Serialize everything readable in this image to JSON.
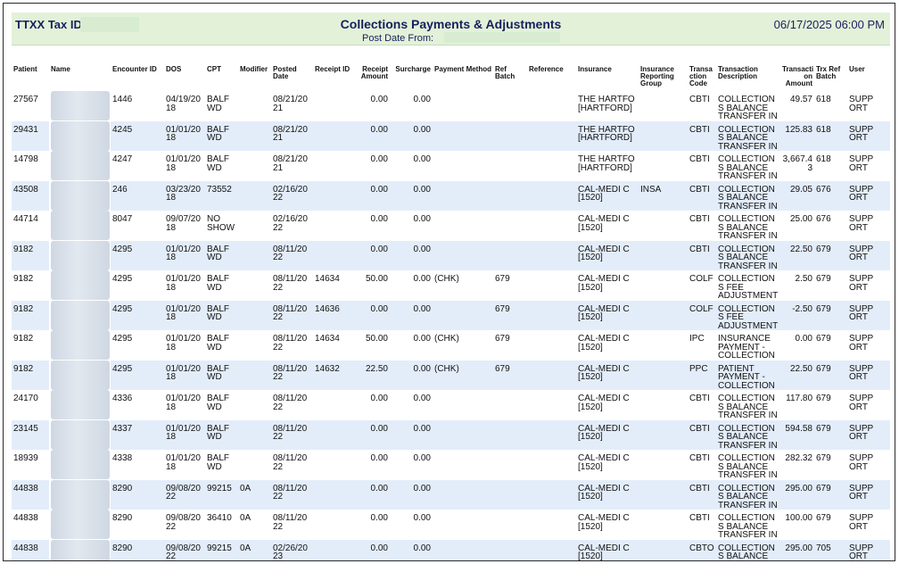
{
  "header": {
    "tax_id_label": "TTXX Tax ID:",
    "title": "Collections Payments & Adjustments",
    "date": "06/17/2025 06:00 PM",
    "post_date_label": "Post Date From:"
  },
  "columns": [
    "Patient",
    "Name",
    "Encounter ID",
    "DOS",
    "CPT",
    "Modifier",
    "Posted Date",
    "Receipt ID",
    "Receipt Amount",
    "Surcharge",
    "Payment Method",
    "Ref Batch",
    "Reference",
    "Insurance",
    "Insurance Reporting Group",
    "Transa ction Code",
    "Transaction Description",
    "Transacti on Amount",
    "Trx Ref Batch",
    "User"
  ],
  "rows": [
    {
      "patient": "27567",
      "encounter": "1446",
      "dos": "04/19/20 18",
      "cpt": "BALF WD",
      "modifier": "",
      "posted": "08/21/20 21",
      "receipt_id": "",
      "receipt_amount": "0.00",
      "surcharge": "0.00",
      "payment_method": "",
      "ref_batch": "",
      "reference": "",
      "insurance": "THE HARTFO [HARTFORD]",
      "ins_group": "",
      "trx_code": "CBTI",
      "trx_desc": "COLLECTION S BALANCE TRANSFER IN",
      "trx_amount": "49.57",
      "trx_batch": "618",
      "user": "SUPP ORT"
    },
    {
      "patient": "29431",
      "encounter": "4245",
      "dos": "01/01/20 18",
      "cpt": "BALF WD",
      "modifier": "",
      "posted": "08/21/20 21",
      "receipt_id": "",
      "receipt_amount": "0.00",
      "surcharge": "0.00",
      "payment_method": "",
      "ref_batch": "",
      "reference": "",
      "insurance": "THE HARTFO [HARTFORD]",
      "ins_group": "",
      "trx_code": "CBTI",
      "trx_desc": "COLLECTION S BALANCE TRANSFER IN",
      "trx_amount": "125.83",
      "trx_batch": "618",
      "user": "SUPP ORT"
    },
    {
      "patient": "14798",
      "encounter": "4247",
      "dos": "01/01/20 18",
      "cpt": "BALF WD",
      "modifier": "",
      "posted": "08/21/20 21",
      "receipt_id": "",
      "receipt_amount": "0.00",
      "surcharge": "0.00",
      "payment_method": "",
      "ref_batch": "",
      "reference": "",
      "insurance": "THE HARTFO [HARTFORD]",
      "ins_group": "",
      "trx_code": "CBTI",
      "trx_desc": "COLLECTION S BALANCE TRANSFER IN",
      "trx_amount": "3,667.4 3",
      "trx_batch": "618",
      "user": "SUPP ORT"
    },
    {
      "patient": "43508",
      "encounter": "246",
      "dos": "03/23/20 18",
      "cpt": "73552",
      "modifier": "",
      "posted": "02/16/20 22",
      "receipt_id": "",
      "receipt_amount": "0.00",
      "surcharge": "0.00",
      "payment_method": "",
      "ref_batch": "",
      "reference": "",
      "insurance": "CAL-MEDI C [1520]",
      "ins_group": "INSA",
      "trx_code": "CBTI",
      "trx_desc": "COLLECTION S BALANCE TRANSFER IN",
      "trx_amount": "29.05",
      "trx_batch": "676",
      "user": "SUPP ORT"
    },
    {
      "patient": "44714",
      "encounter": "8047",
      "dos": "09/07/20 18",
      "cpt": "NO SHOW",
      "modifier": "",
      "posted": "02/16/20 22",
      "receipt_id": "",
      "receipt_amount": "0.00",
      "surcharge": "0.00",
      "payment_method": "",
      "ref_batch": "",
      "reference": "",
      "insurance": "CAL-MEDI C [1520]",
      "ins_group": "",
      "trx_code": "CBTI",
      "trx_desc": "COLLECTION S BALANCE TRANSFER IN",
      "trx_amount": "25.00",
      "trx_batch": "676",
      "user": "SUPP ORT"
    },
    {
      "patient": "9182",
      "encounter": "4295",
      "dos": "01/01/20 18",
      "cpt": "BALF WD",
      "modifier": "",
      "posted": "08/11/20 22",
      "receipt_id": "",
      "receipt_amount": "0.00",
      "surcharge": "0.00",
      "payment_method": "",
      "ref_batch": "",
      "reference": "",
      "insurance": "CAL-MEDI C [1520]",
      "ins_group": "",
      "trx_code": "CBTI",
      "trx_desc": "COLLECTION S BALANCE TRANSFER IN",
      "trx_amount": "22.50",
      "trx_batch": "679",
      "user": "SUPP ORT"
    },
    {
      "patient": "9182",
      "encounter": "4295",
      "dos": "01/01/20 18",
      "cpt": "BALF WD",
      "modifier": "",
      "posted": "08/11/20 22",
      "receipt_id": "14634",
      "receipt_amount": "50.00",
      "surcharge": "0.00",
      "payment_method": "(CHK)",
      "ref_batch": "679",
      "reference": "",
      "insurance": "CAL-MEDI C [1520]",
      "ins_group": "",
      "trx_code": "COLF",
      "trx_desc": "COLLECTION S FEE ADJUSTMENT",
      "trx_amount": "2.50",
      "trx_batch": "679",
      "user": "SUPP ORT"
    },
    {
      "patient": "9182",
      "encounter": "4295",
      "dos": "01/01/20 18",
      "cpt": "BALF WD",
      "modifier": "",
      "posted": "08/11/20 22",
      "receipt_id": "14636",
      "receipt_amount": "0.00",
      "surcharge": "0.00",
      "payment_method": "",
      "ref_batch": "679",
      "reference": "",
      "insurance": "CAL-MEDI C [1520]",
      "ins_group": "",
      "trx_code": "COLF",
      "trx_desc": "COLLECTION S FEE ADJUSTMENT",
      "trx_amount": "-2.50",
      "trx_batch": "679",
      "user": "SUPP ORT"
    },
    {
      "patient": "9182",
      "encounter": "4295",
      "dos": "01/01/20 18",
      "cpt": "BALF WD",
      "modifier": "",
      "posted": "08/11/20 22",
      "receipt_id": "14634",
      "receipt_amount": "50.00",
      "surcharge": "0.00",
      "payment_method": "(CHK)",
      "ref_batch": "679",
      "reference": "",
      "insurance": "CAL-MEDI C [1520]",
      "ins_group": "",
      "trx_code": "IPC",
      "trx_desc": "INSURANCE PAYMENT - COLLECTION",
      "trx_amount": "0.00",
      "trx_batch": "679",
      "user": "SUPP ORT"
    },
    {
      "patient": "9182",
      "encounter": "4295",
      "dos": "01/01/20 18",
      "cpt": "BALF WD",
      "modifier": "",
      "posted": "08/11/20 22",
      "receipt_id": "14632",
      "receipt_amount": "22.50",
      "surcharge": "0.00",
      "payment_method": "(CHK)",
      "ref_batch": "679",
      "reference": "",
      "insurance": "CAL-MEDI C [1520]",
      "ins_group": "",
      "trx_code": "PPC",
      "trx_desc": "PATIENT PAYMENT - COLLECTION",
      "trx_amount": "22.50",
      "trx_batch": "679",
      "user": "SUPP ORT"
    },
    {
      "patient": "24170",
      "encounter": "4336",
      "dos": "01/01/20 18",
      "cpt": "BALF WD",
      "modifier": "",
      "posted": "08/11/20 22",
      "receipt_id": "",
      "receipt_amount": "0.00",
      "surcharge": "0.00",
      "payment_method": "",
      "ref_batch": "",
      "reference": "",
      "insurance": "CAL-MEDI C [1520]",
      "ins_group": "",
      "trx_code": "CBTI",
      "trx_desc": "COLLECTION S BALANCE TRANSFER IN",
      "trx_amount": "117.80",
      "trx_batch": "679",
      "user": "SUPP ORT"
    },
    {
      "patient": "23145",
      "encounter": "4337",
      "dos": "01/01/20 18",
      "cpt": "BALF WD",
      "modifier": "",
      "posted": "08/11/20 22",
      "receipt_id": "",
      "receipt_amount": "0.00",
      "surcharge": "0.00",
      "payment_method": "",
      "ref_batch": "",
      "reference": "",
      "insurance": "CAL-MEDI C [1520]",
      "ins_group": "",
      "trx_code": "CBTI",
      "trx_desc": "COLLECTION S BALANCE TRANSFER IN",
      "trx_amount": "594.58",
      "trx_batch": "679",
      "user": "SUPP ORT"
    },
    {
      "patient": "18939",
      "encounter": "4338",
      "dos": "01/01/20 18",
      "cpt": "BALF WD",
      "modifier": "",
      "posted": "08/11/20 22",
      "receipt_id": "",
      "receipt_amount": "0.00",
      "surcharge": "0.00",
      "payment_method": "",
      "ref_batch": "",
      "reference": "",
      "insurance": "CAL-MEDI C [1520]",
      "ins_group": "",
      "trx_code": "CBTI",
      "trx_desc": "COLLECTION S BALANCE TRANSFER IN",
      "trx_amount": "282.32",
      "trx_batch": "679",
      "user": "SUPP ORT"
    },
    {
      "patient": "44838",
      "encounter": "8290",
      "dos": "09/08/20 22",
      "cpt": "99215",
      "modifier": "0A",
      "posted": "08/11/20 22",
      "receipt_id": "",
      "receipt_amount": "0.00",
      "surcharge": "0.00",
      "payment_method": "",
      "ref_batch": "",
      "reference": "",
      "insurance": "CAL-MEDI C [1520]",
      "ins_group": "",
      "trx_code": "CBTI",
      "trx_desc": "COLLECTION S BALANCE TRANSFER IN",
      "trx_amount": "295.00",
      "trx_batch": "679",
      "user": "SUPP ORT"
    },
    {
      "patient": "44838",
      "encounter": "8290",
      "dos": "09/08/20 22",
      "cpt": "36410",
      "modifier": "0A",
      "posted": "08/11/20 22",
      "receipt_id": "",
      "receipt_amount": "0.00",
      "surcharge": "0.00",
      "payment_method": "",
      "ref_batch": "",
      "reference": "",
      "insurance": "CAL-MEDI C [1520]",
      "ins_group": "",
      "trx_code": "CBTI",
      "trx_desc": "COLLECTION S BALANCE TRANSFER IN",
      "trx_amount": "100.00",
      "trx_batch": "679",
      "user": "SUPP ORT"
    },
    {
      "patient": "44838",
      "encounter": "8290",
      "dos": "09/08/20 22",
      "cpt": "99215",
      "modifier": "0A",
      "posted": "02/26/20 23",
      "receipt_id": "",
      "receipt_amount": "0.00",
      "surcharge": "0.00",
      "payment_method": "",
      "ref_batch": "",
      "reference": "",
      "insurance": "CAL-MEDI C [1520]",
      "ins_group": "",
      "trx_code": "CBTO",
      "trx_desc": "COLLECTION S BALANCE TRANSFER O",
      "trx_amount": "295.00",
      "trx_batch": "705",
      "user": "SUPP ORT"
    }
  ]
}
